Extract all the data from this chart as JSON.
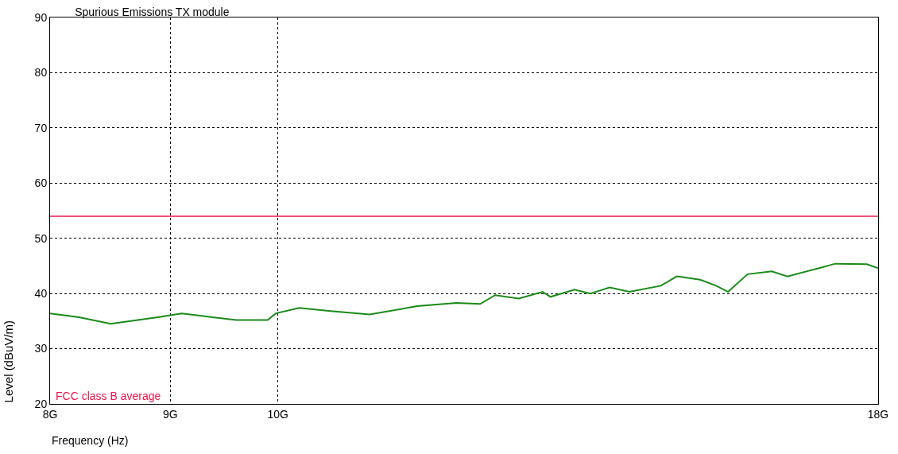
{
  "chart_data": {
    "type": "line",
    "title": "Spurious Emissions TX module",
    "xlabel": "Frequency (Hz)",
    "ylabel": "Level (dBuV/m)",
    "log": "x",
    "grid": true,
    "marker": "none",
    "line_style": "solid",
    "xlim": [
      8,
      18
    ],
    "xticks": [
      {
        "value": 8,
        "label": "8G"
      },
      {
        "value": 9,
        "label": "9G"
      },
      {
        "value": 10,
        "label": "10G"
      },
      {
        "value": 18,
        "label": "18G"
      }
    ],
    "ylim": [
      20,
      90
    ],
    "yticks": [
      20,
      30,
      40,
      50,
      60,
      70,
      80,
      90
    ],
    "ref_lines": [
      {
        "axis": "y",
        "value": 54,
        "label": "FCC class B average",
        "color": "#e8174a"
      }
    ],
    "series": [
      {
        "color": "#1a8a1a",
        "x": [
          8.0,
          8.23,
          8.49,
          8.89,
          9.1,
          9.38,
          9.6,
          9.9,
          9.98,
          10.21,
          10.53,
          10.94,
          11.46,
          11.91,
          12.19,
          12.37,
          12.66,
          12.96,
          13.06,
          13.37,
          13.58,
          13.84,
          14.11,
          14.55,
          14.78,
          15.12,
          15.36,
          15.54,
          15.84,
          16.22,
          16.47,
          16.99,
          17.26,
          17.8,
          18.0
        ],
        "values": [
          36.4,
          35.7,
          34.5,
          35.7,
          36.4,
          35.7,
          35.2,
          35.2,
          36.4,
          37.4,
          36.8,
          36.2,
          37.7,
          38.3,
          38.1,
          39.7,
          39.1,
          40.3,
          39.4,
          40.7,
          40.0,
          41.1,
          40.3,
          41.4,
          43.1,
          42.5,
          41.4,
          40.3,
          43.5,
          44.0,
          43.1,
          44.6,
          45.4,
          45.3,
          44.6
        ]
      }
    ]
  }
}
